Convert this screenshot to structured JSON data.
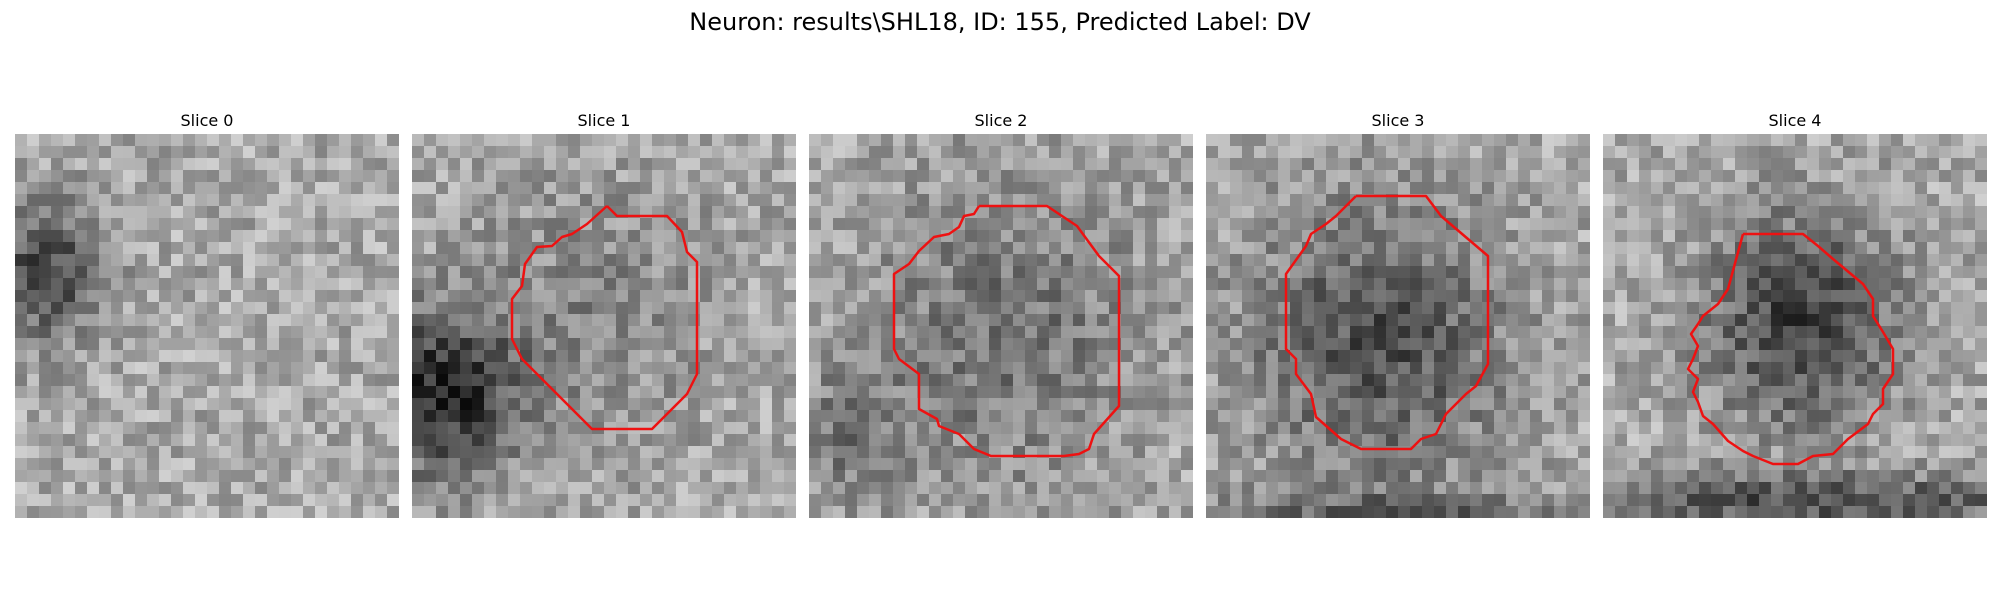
{
  "title": "Neuron: results\\SHL18, ID: 155, Predicted Label: DV",
  "colors": {
    "contour": "#ee1111",
    "background": "#ffffff"
  },
  "slices": [
    {
      "label": "Slice 0",
      "has_contour": false
    },
    {
      "label": "Slice 1",
      "has_contour": true
    },
    {
      "label": "Slice 2",
      "has_contour": true
    },
    {
      "label": "Slice 3",
      "has_contour": true
    },
    {
      "label": "Slice 4",
      "has_contour": true
    }
  ]
}
